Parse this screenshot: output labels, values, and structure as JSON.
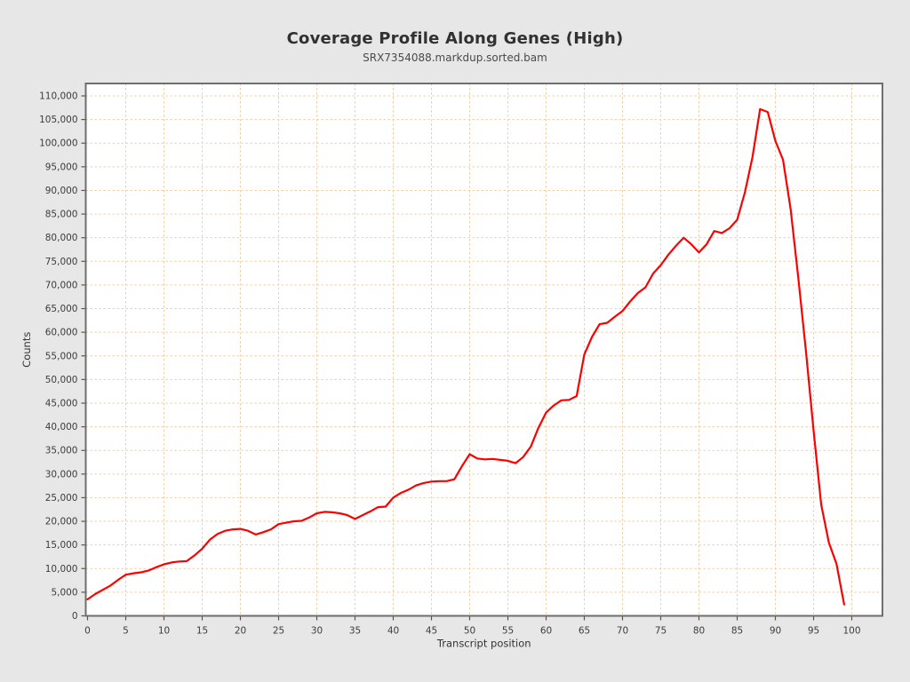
{
  "header": {
    "title": "Coverage Profile Along Genes (High)",
    "subtitle": "SRX7354088.markdup.sorted.bam"
  },
  "colors": {
    "background": "#e7e7e7",
    "plot_background": "#ffffff",
    "grid": "#f2cda6",
    "plot_border": "#6e6e6e",
    "tick": "#555555",
    "series": "#fe0000",
    "text": "#3c3c3c"
  },
  "chart_data": {
    "type": "line",
    "title": "Coverage Profile Along Genes (High)",
    "subtitle": "SRX7354088.markdup.sorted.bam",
    "xlabel": "Transcript position",
    "ylabel": "Counts",
    "xlim": [
      0,
      104
    ],
    "ylim": [
      0,
      112500
    ],
    "x_ticks": [
      0,
      5,
      10,
      15,
      20,
      25,
      30,
      35,
      40,
      45,
      50,
      55,
      60,
      65,
      70,
      75,
      80,
      85,
      90,
      95,
      100
    ],
    "y_tick_min": 0,
    "y_tick_max": 110000,
    "y_tick_step": 5000,
    "grid": "dashed",
    "legend_position": "none",
    "series": [
      {
        "name": "SRX7354088.markdup.sorted.bam",
        "color": "#fe0000",
        "x_start": 0,
        "x_step": 1,
        "values": [
          3500,
          4600,
          5500,
          6400,
          7600,
          8700,
          9000,
          9200,
          9600,
          10300,
          10900,
          11300,
          11500,
          11600,
          12800,
          14200,
          16100,
          17300,
          18000,
          18300,
          18400,
          18000,
          17200,
          17700,
          18300,
          19400,
          19700,
          20000,
          20100,
          20800,
          21700,
          22000,
          21900,
          21700,
          21300,
          20500,
          21300,
          22100,
          23000,
          23100,
          25000,
          26000,
          26700,
          27600,
          28100,
          28400,
          28500,
          28500,
          28900,
          31700,
          34200,
          33300,
          33100,
          33200,
          33000,
          32800,
          32300,
          33600,
          35800,
          39800,
          43000,
          44500,
          45600,
          45700,
          46500,
          55300,
          59000,
          61700,
          62000,
          63300,
          64500,
          66500,
          68300,
          69500,
          72400,
          74200,
          76400,
          78300,
          80000,
          78600,
          76900,
          78600,
          81400,
          81000,
          82000,
          83800,
          89500,
          97000,
          107200,
          106600,
          100500,
          96500,
          86000,
          71500,
          56000,
          39200,
          23500,
          15500,
          11000,
          2400
        ]
      }
    ]
  }
}
